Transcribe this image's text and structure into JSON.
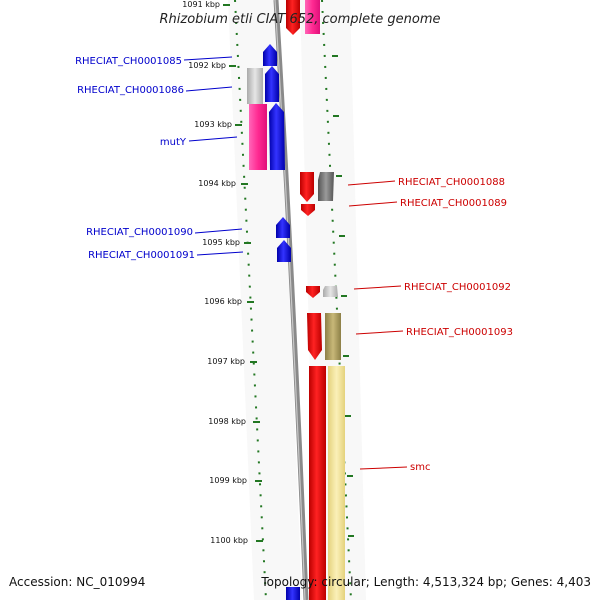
{
  "title": "Rhizobium etli CIAT 652, complete genome",
  "accession": "Accession: NC_010994",
  "topology": "Topology: circular; Length: 4,513,324 bp; Genes: 4,403",
  "ticks": [
    "1091 kbp",
    "1092 kbp",
    "1093 kbp",
    "1094 kbp",
    "1095 kbp",
    "1096 kbp",
    "1097 kbp",
    "1098 kbp",
    "1099 kbp",
    "1100 kbp"
  ],
  "labels_left": [
    "RHECIAT_CH0001085",
    "RHECIAT_CH0001086",
    "mutY",
    "RHECIAT_CH0001090",
    "RHECIAT_CH0001091"
  ],
  "labels_right": [
    "RHECIAT_CH0001088",
    "RHECIAT_CH0001089",
    "RHECIAT_CH0001092",
    "RHECIAT_CH0001093",
    "smc"
  ],
  "colors": {
    "left_label": "#0000cc",
    "right_label": "#cc0000",
    "blue_gene": "#0000ee",
    "red_gene": "#ee0000",
    "pink_gene": "#ff3399",
    "gray_gene": "#777777",
    "olive_gene": "#a89a60",
    "yellow_gene": "#f0e29a",
    "tick_green": "#227722",
    "backbone": "#808080"
  }
}
